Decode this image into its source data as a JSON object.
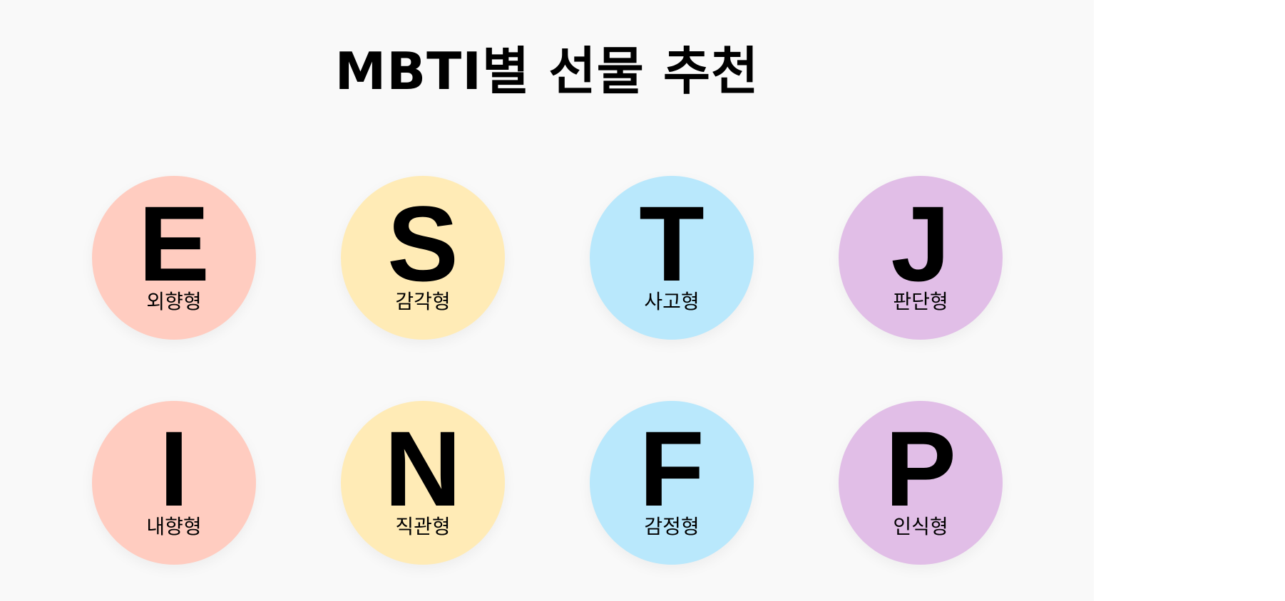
{
  "title": "MBTI별 선물 추천",
  "types": [
    {
      "letter": "E",
      "label": "외향형",
      "color": "#ffccc0"
    },
    {
      "letter": "S",
      "label": "감각형",
      "color": "#ffebb6"
    },
    {
      "letter": "T",
      "label": "사고형",
      "color": "#b9e8fc"
    },
    {
      "letter": "J",
      "label": "판단형",
      "color": "#e1bee7"
    },
    {
      "letter": "I",
      "label": "내향형",
      "color": "#ffccc0"
    },
    {
      "letter": "N",
      "label": "직관형",
      "color": "#ffebb6"
    },
    {
      "letter": "F",
      "label": "감정형",
      "color": "#b9e8fc"
    },
    {
      "letter": "P",
      "label": "인식형",
      "color": "#e1bee7"
    }
  ]
}
